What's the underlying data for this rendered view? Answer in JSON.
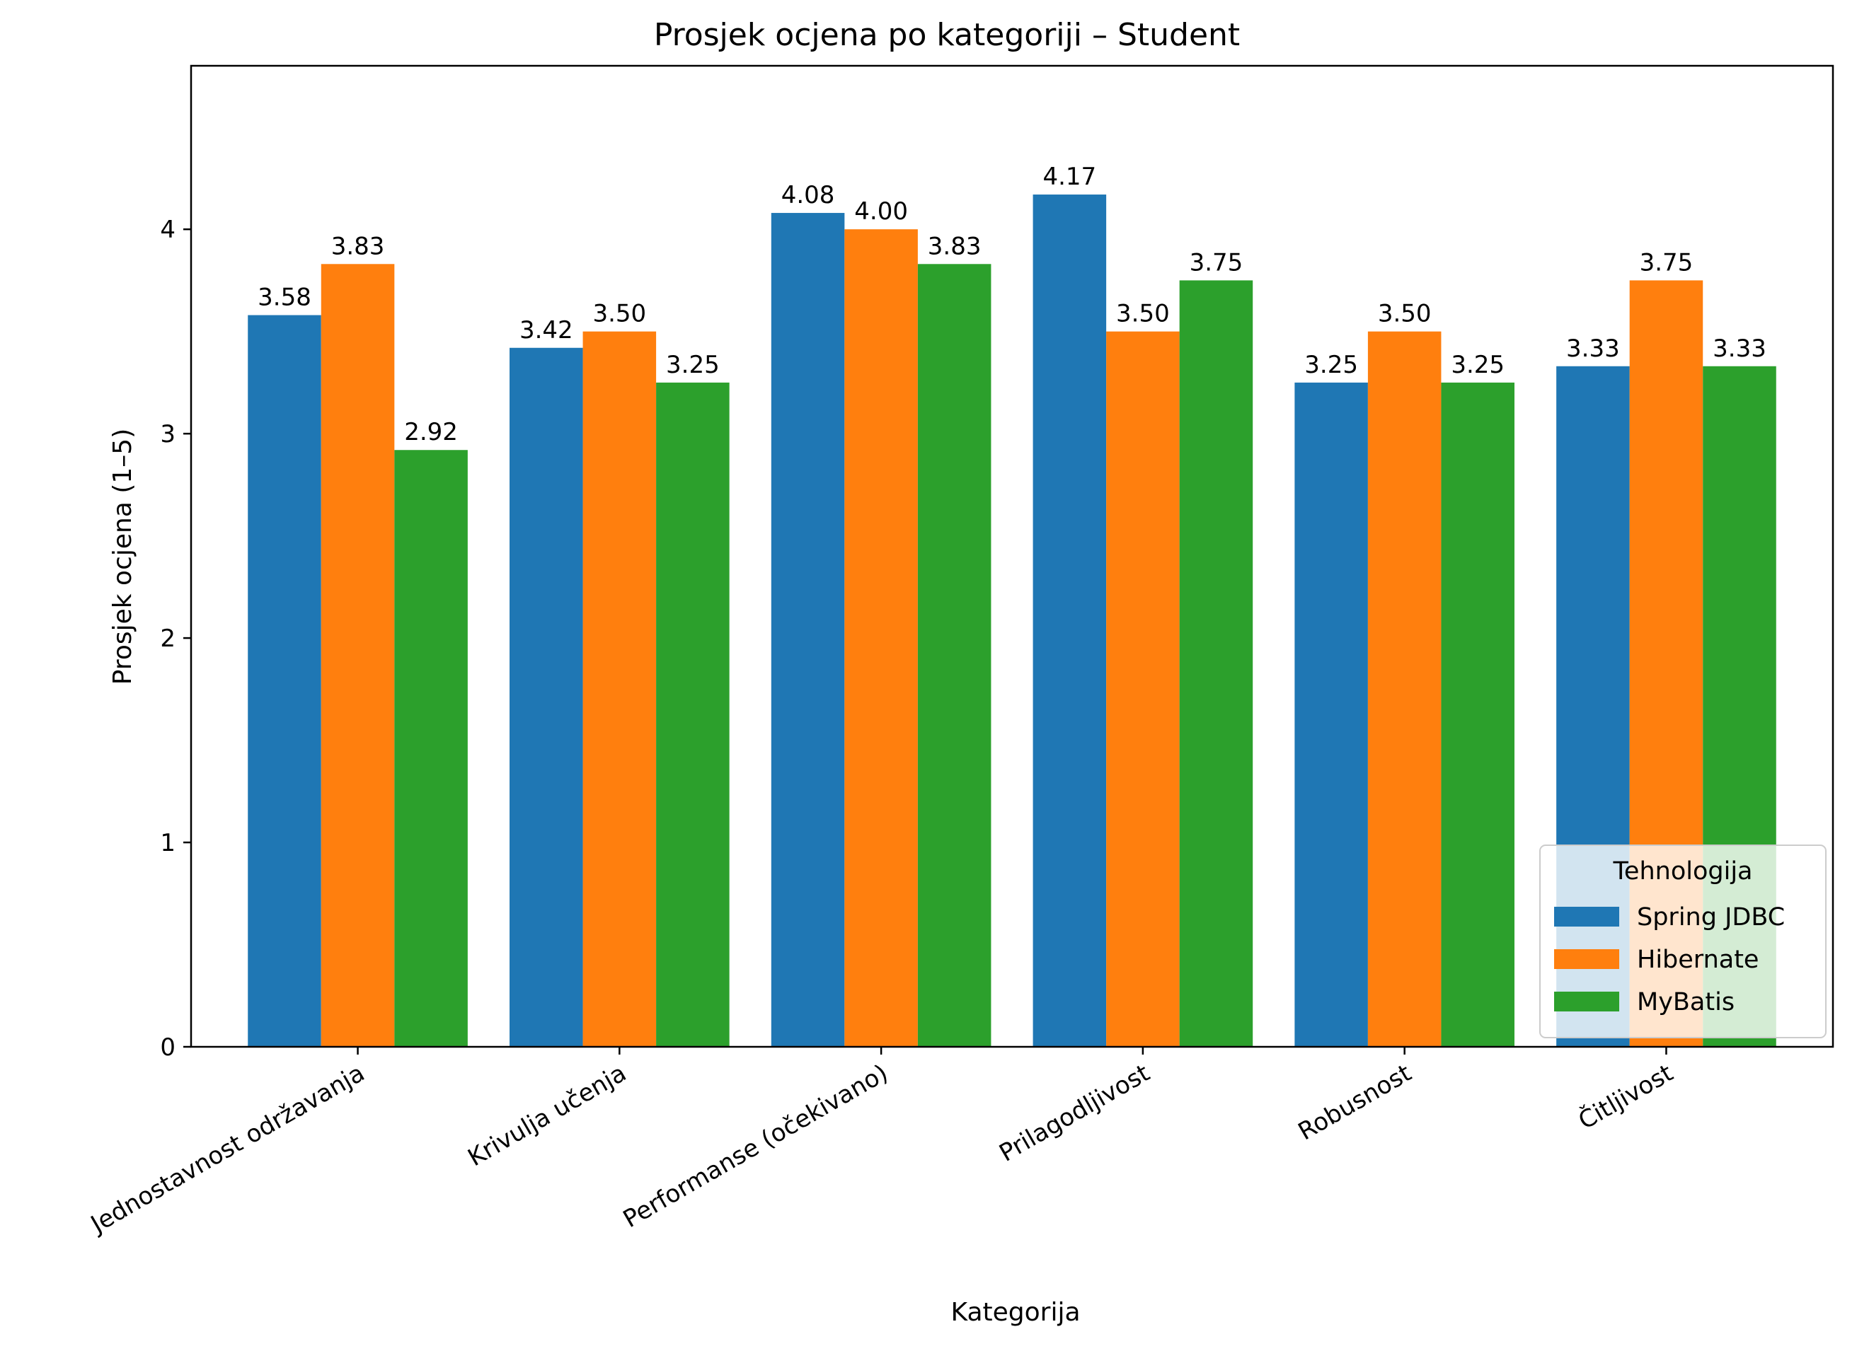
{
  "chart_data": {
    "type": "bar",
    "title": "Prosjek ocjena po kategoriji – Student",
    "xlabel": "Kategorija",
    "ylabel": "Prosjek ocjena (1–5)",
    "ylim": [
      0,
      4.8
    ],
    "yticks": [
      0,
      1,
      2,
      3,
      4
    ],
    "categories": [
      "Jednostavnost održavanja",
      "Krivulja učenja",
      "Performanse (očekivano)",
      "Prilagodljivost",
      "Robusnost",
      "Čitljivost"
    ],
    "series": [
      {
        "name": "Spring JDBC",
        "color": "#1f77b4",
        "values": [
          3.58,
          3.42,
          4.08,
          4.17,
          3.25,
          3.33
        ]
      },
      {
        "name": "Hibernate",
        "color": "#ff7f0e",
        "values": [
          3.83,
          3.5,
          4.0,
          3.5,
          3.5,
          3.75
        ]
      },
      {
        "name": "MyBatis",
        "color": "#2ca02c",
        "values": [
          2.92,
          3.25,
          3.83,
          3.75,
          3.25,
          3.33
        ]
      }
    ],
    "legend": {
      "title": "Tehnologija",
      "placement": "lower-right"
    },
    "grid": false
  }
}
